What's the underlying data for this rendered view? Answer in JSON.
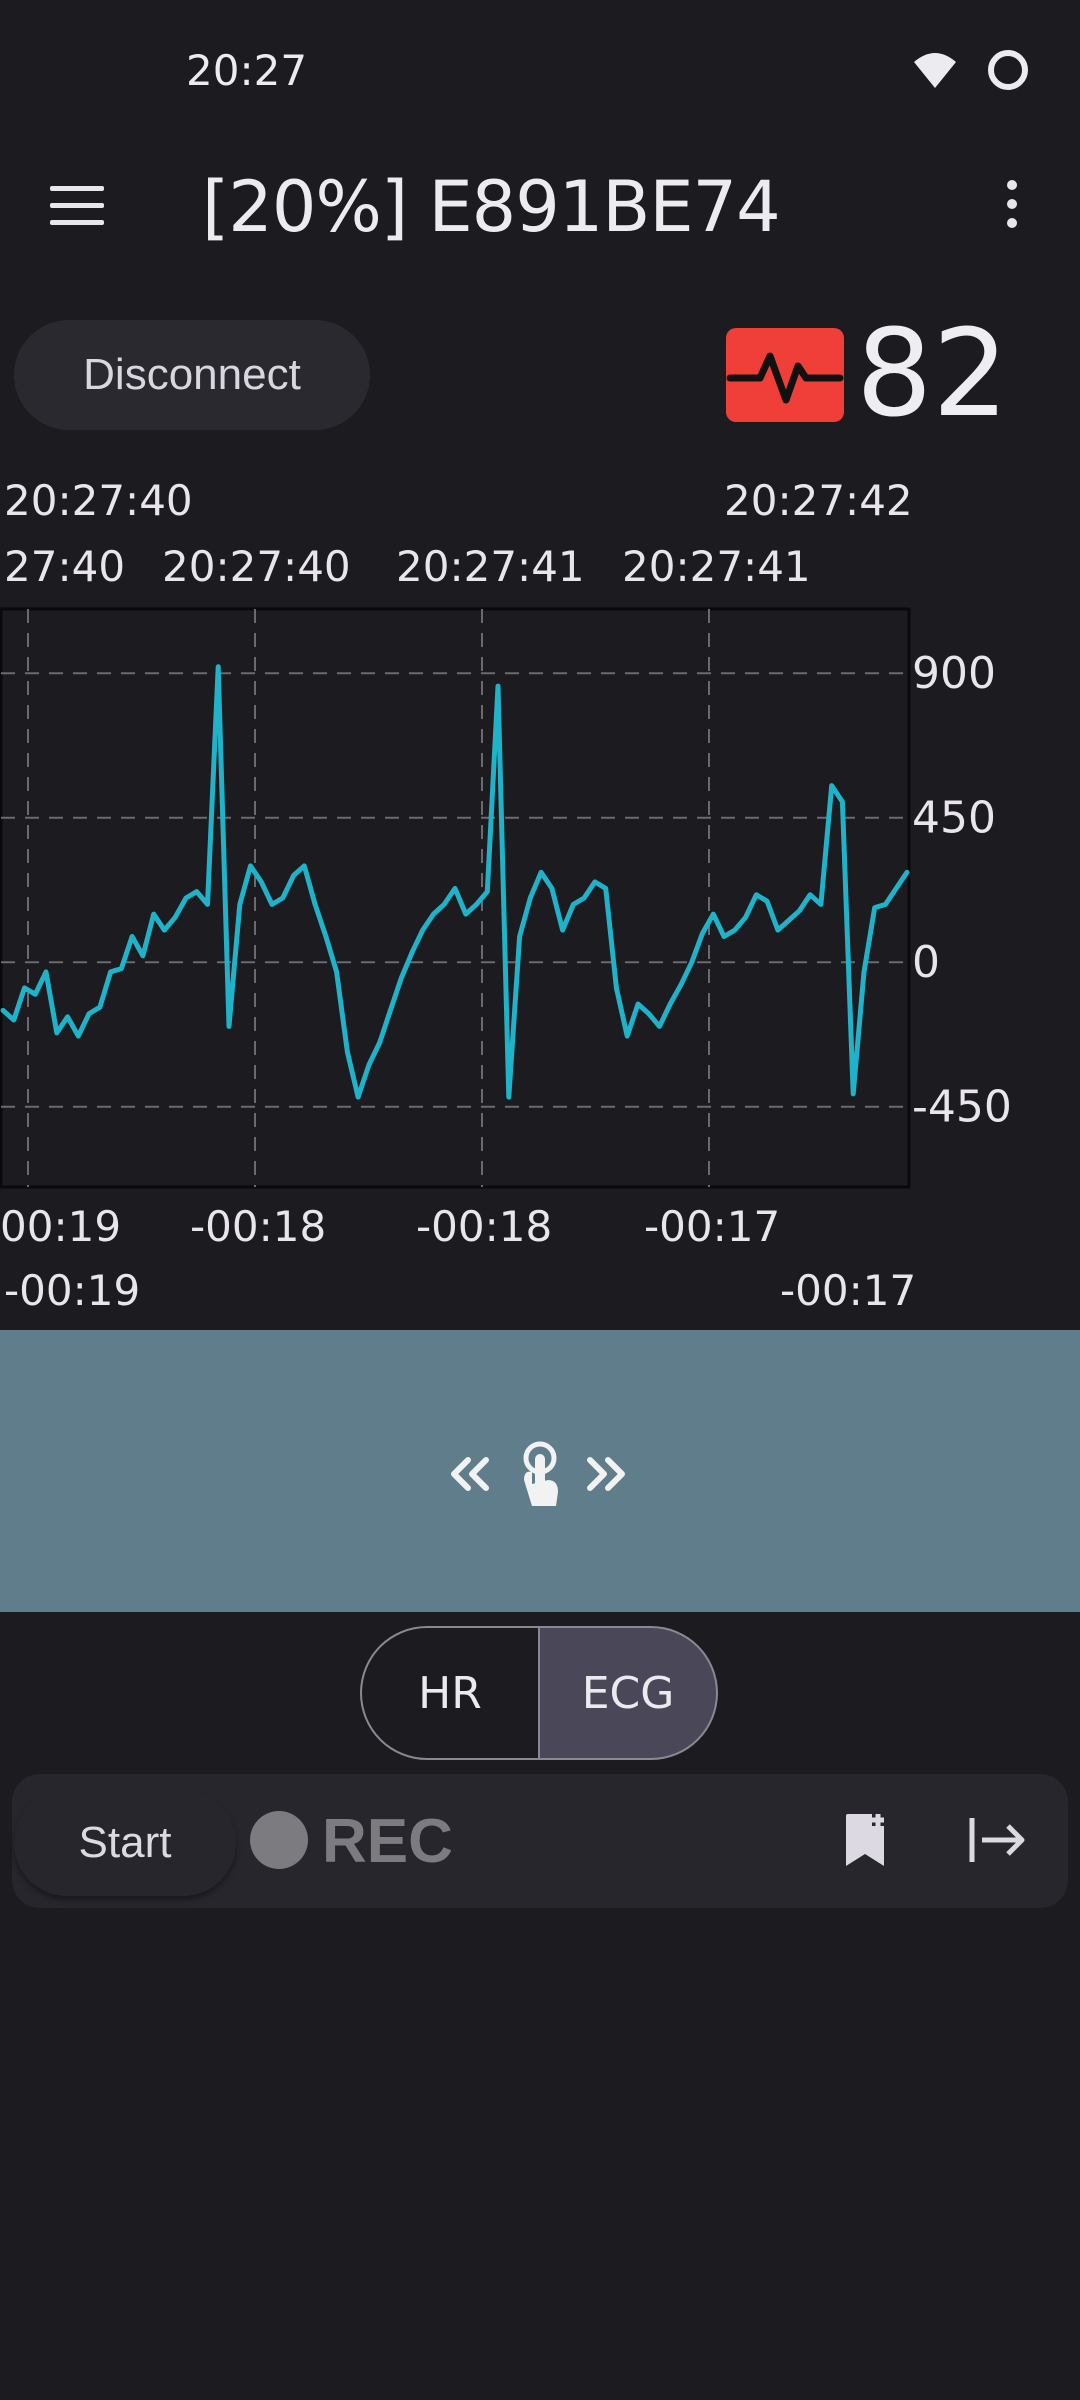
{
  "status_bar": {
    "time": "20:27",
    "icons": [
      "wifi-icon",
      "circle-status-icon"
    ]
  },
  "app_bar": {
    "title": "[20%] E891BE74",
    "menu_icon": "menu-icon",
    "overflow_icon": "more-vert-icon"
  },
  "connection": {
    "disconnect_label": "Disconnect"
  },
  "heart_rate": {
    "value": "82",
    "icon": "heart-pulse-icon",
    "color": "#f03f38"
  },
  "time_labels_top": {
    "row1": [
      "20:27:40",
      "20:27:42"
    ],
    "row2": [
      "27:40",
      "20:27:40",
      "20:27:41",
      "20:27:41"
    ]
  },
  "time_labels_bottom": {
    "row1": [
      "00:19",
      "-00:18",
      "-00:18",
      "-00:17"
    ],
    "row2": [
      "-00:19",
      "-00:17"
    ]
  },
  "chart_data": {
    "type": "line",
    "y_tick_labels": [
      "900",
      "450",
      "0",
      "-450"
    ],
    "ylim": [
      -700,
      1100
    ],
    "grid": true,
    "line_color": "#1fb2c8",
    "series": [
      {
        "values": [
          -150,
          -180,
          -80,
          -100,
          -30,
          -220,
          -170,
          -230,
          -160,
          -140,
          -30,
          -20,
          80,
          20,
          150,
          100,
          140,
          200,
          220,
          180,
          920,
          -200,
          180,
          300,
          250,
          180,
          200,
          270,
          300,
          180,
          80,
          -30,
          -280,
          -420,
          -320,
          -250,
          -150,
          -50,
          30,
          100,
          150,
          180,
          230,
          150,
          180,
          220,
          860,
          -420,
          80,
          200,
          280,
          230,
          100,
          180,
          200,
          250,
          230,
          -80,
          -230,
          -130,
          -160,
          -200,
          -130,
          -70,
          0,
          90,
          150,
          80,
          100,
          140,
          210,
          190,
          100,
          130,
          160,
          210,
          180,
          550,
          500,
          -410,
          -30,
          170,
          180,
          230,
          280
        ]
      }
    ]
  },
  "gesture_band": {
    "icons": [
      "chevrons-left-icon",
      "touch-hand-icon",
      "chevrons-right-icon"
    ]
  },
  "mode_toggle": {
    "options": [
      "HR",
      "ECG"
    ],
    "selected": "ECG"
  },
  "recording": {
    "start_label": "Start",
    "rec_label": "REC",
    "icons": [
      "bookmark-add-icon",
      "export-arrow-icon"
    ]
  }
}
